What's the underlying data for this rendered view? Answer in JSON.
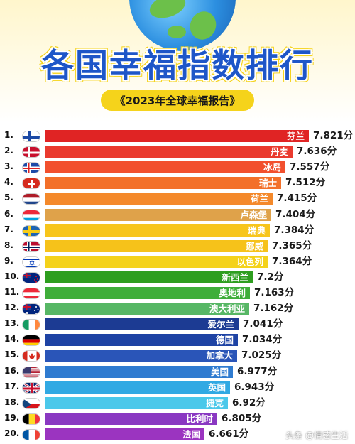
{
  "header": {
    "title": "各国幸福指数排行",
    "subtitle": "《2023年全球幸福报告》"
  },
  "watermark": "头条 @情感生活",
  "chart_data": {
    "type": "bar",
    "orientation": "horizontal",
    "title": "各国幸福指数排行",
    "subtitle": "《2023年全球幸福报告》",
    "value_suffix": "分",
    "xlim": [
      0,
      7.821
    ],
    "rows": [
      {
        "rank": "1.",
        "country": "芬兰",
        "value": 7.821,
        "value_label": "7.821分",
        "color": "#e02424",
        "flag": "finland"
      },
      {
        "rank": "2.",
        "country": "丹麦",
        "value": 7.636,
        "value_label": "7.636分",
        "color": "#ea3a2e",
        "flag": "denmark"
      },
      {
        "rank": "3.",
        "country": "冰岛",
        "value": 7.557,
        "value_label": "7.557分",
        "color": "#f2502e",
        "flag": "iceland"
      },
      {
        "rank": "4.",
        "country": "瑞士",
        "value": 7.512,
        "value_label": "7.512分",
        "color": "#f3702a",
        "flag": "switzerland"
      },
      {
        "rank": "5.",
        "country": "荷兰",
        "value": 7.415,
        "value_label": "7.415分",
        "color": "#f4892b",
        "flag": "netherlands"
      },
      {
        "rank": "6.",
        "country": "卢森堡",
        "value": 7.404,
        "value_label": "7.404分",
        "color": "#dfa24a",
        "flag": "luxembourg"
      },
      {
        "rank": "7.",
        "country": "瑞典",
        "value": 7.384,
        "value_label": "7.384分",
        "color": "#f7c51c",
        "flag": "sweden"
      },
      {
        "rank": "8.",
        "country": "挪威",
        "value": 7.365,
        "value_label": "7.365分",
        "color": "#f6c21a",
        "flag": "norway"
      },
      {
        "rank": "9.",
        "country": "以色列",
        "value": 7.364,
        "value_label": "7.364分",
        "color": "#f4d21b",
        "flag": "israel"
      },
      {
        "rank": "10.",
        "country": "新西兰",
        "value": 7.2,
        "value_label": "7.2分",
        "color": "#2e9e1f",
        "flag": "new-zealand"
      },
      {
        "rank": "11.",
        "country": "奥地利",
        "value": 7.163,
        "value_label": "7.163分",
        "color": "#3fae3a",
        "flag": "austria"
      },
      {
        "rank": "12.",
        "country": "澳大利亚",
        "value": 7.162,
        "value_label": "7.162分",
        "color": "#57b765",
        "flag": "australia"
      },
      {
        "rank": "13.",
        "country": "爱尔兰",
        "value": 7.041,
        "value_label": "7.041分",
        "color": "#1c3b93",
        "flag": "ireland"
      },
      {
        "rank": "14.",
        "country": "德国",
        "value": 7.034,
        "value_label": "7.034分",
        "color": "#1e43a4",
        "flag": "germany"
      },
      {
        "rank": "15.",
        "country": "加拿大",
        "value": 7.025,
        "value_label": "7.025分",
        "color": "#2a55b8",
        "flag": "canada"
      },
      {
        "rank": "16.",
        "country": "美国",
        "value": 6.977,
        "value_label": "6.977分",
        "color": "#2f7bd0",
        "flag": "usa"
      },
      {
        "rank": "17.",
        "country": "英国",
        "value": 6.943,
        "value_label": "6.943分",
        "color": "#31a9e3",
        "flag": "uk"
      },
      {
        "rank": "18.",
        "country": "捷克",
        "value": 6.92,
        "value_label": "6.92分",
        "color": "#4bc8ea",
        "flag": "czech"
      },
      {
        "rank": "19.",
        "country": "比利时",
        "value": 6.805,
        "value_label": "6.805分",
        "color": "#8a38c2",
        "flag": "belgium"
      },
      {
        "rank": "20.",
        "country": "法国",
        "value": 6.661,
        "value_label": "6.661分",
        "color": "#9b34c0",
        "flag": "france"
      }
    ]
  }
}
